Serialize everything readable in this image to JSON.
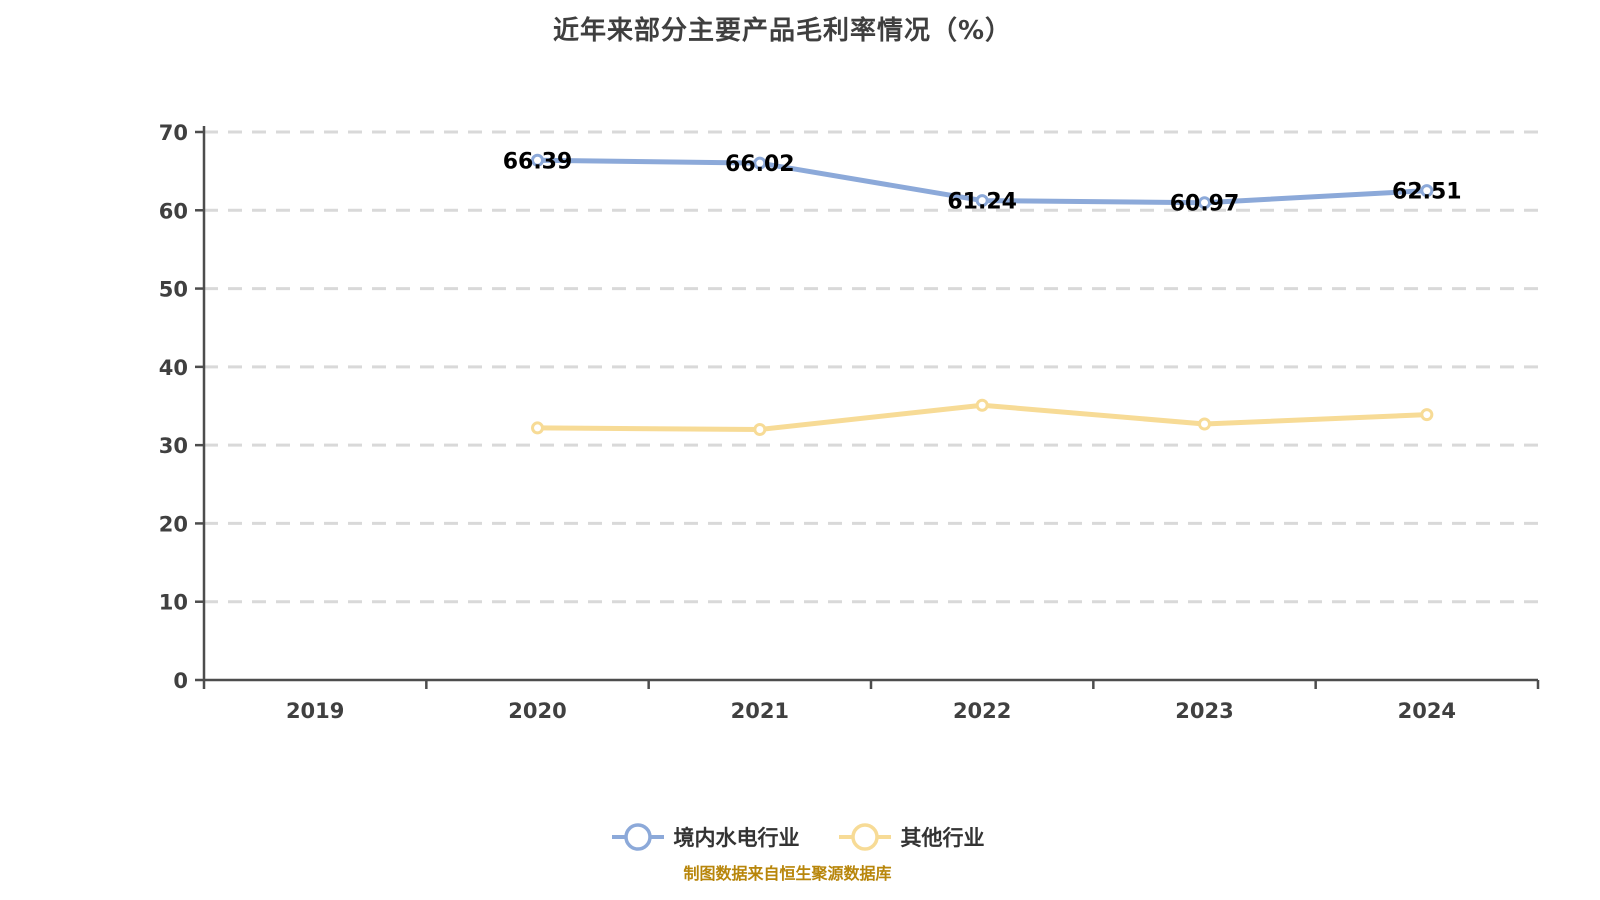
{
  "chart": {
    "title": "近年来部分主要产品毛利率情况（%）"
  },
  "footer": {
    "source": "制图数据来自恒生聚源数据库"
  },
  "chart_data": {
    "type": "line",
    "title": "近年来部分主要产品毛利率情况（%）",
    "categories": [
      "2019",
      "2020",
      "2021",
      "2022",
      "2023",
      "2024"
    ],
    "series": [
      {
        "name": "境内水电行业",
        "color": "#8ca9d9",
        "marker": "hollow-circle",
        "values": [
          null,
          66.39,
          66.02,
          61.24,
          60.97,
          62.51
        ],
        "data_labels": true
      },
      {
        "name": "其他行业",
        "color": "#f7db96",
        "marker": "hollow-circle",
        "values": [
          null,
          32.2,
          32.0,
          35.1,
          32.7,
          33.9
        ],
        "data_labels": false
      }
    ],
    "ylim": [
      0,
      70
    ],
    "ytick_step": 10,
    "grid": "horizontal-dashed",
    "legend_position": "bottom",
    "label_color": "#000000",
    "axis_color": "#4d4d4d",
    "grid_color": "#d9d9d9",
    "tick_label_color": "#404040"
  }
}
